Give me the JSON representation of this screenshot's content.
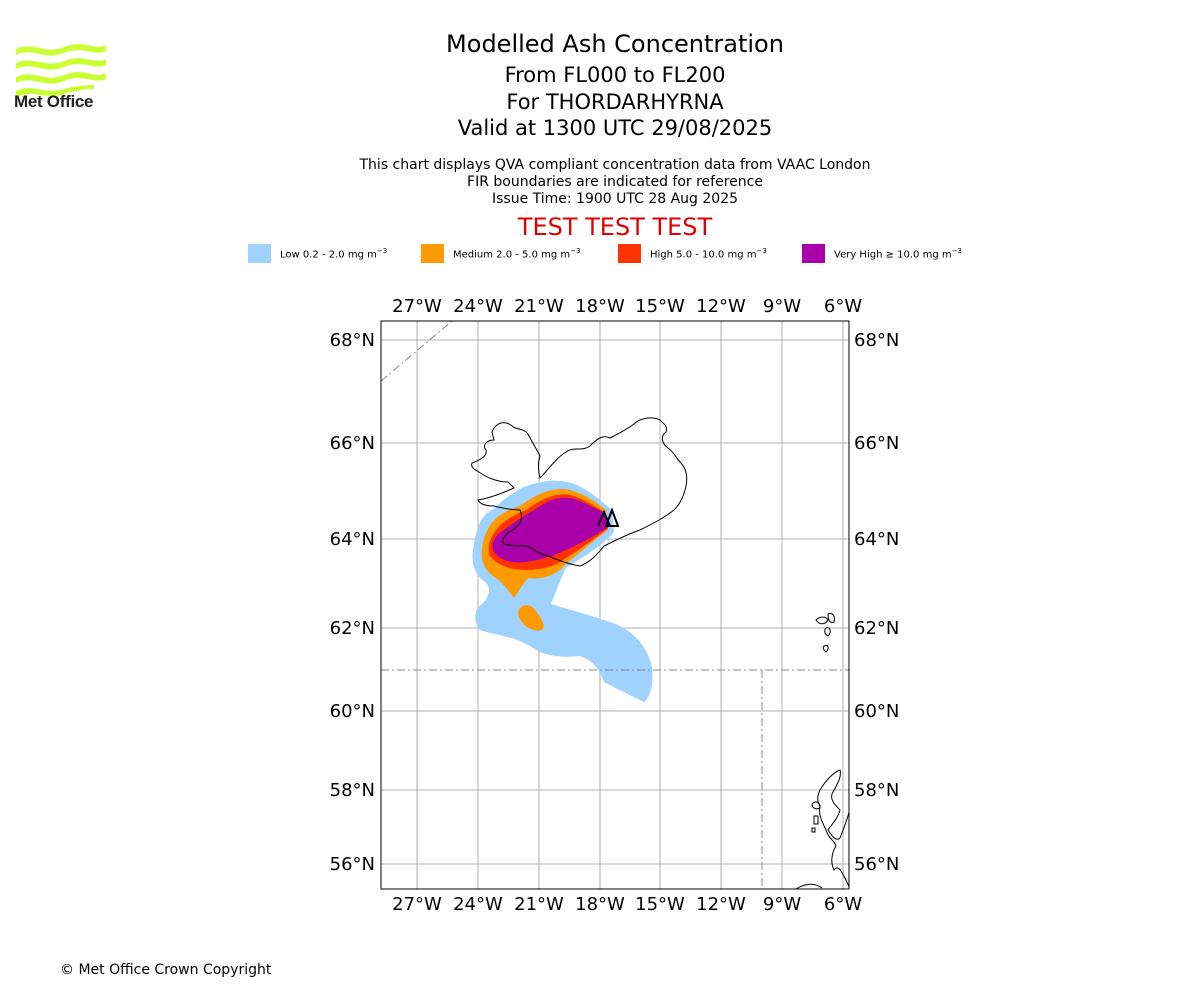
{
  "branding": {
    "logo_text": "Met Office",
    "logo_color": "#ccff33",
    "copyright": "© Met Office Crown Copyright"
  },
  "header": {
    "title": "Modelled Ash Concentration",
    "levels": "From FL000 to FL200",
    "volcano": "For THORDARHYRNA",
    "valid": "Valid at 1300 UTC 29/08/2025",
    "info_line1": "This chart displays QVA compliant concentration data from VAAC London",
    "info_line2": "FIR boundaries are indicated for reference",
    "info_line3": "Issue Time: 1900 UTC 28 Aug 2025",
    "test_banner": "TEST TEST TEST",
    "test_color": "#e00000"
  },
  "legend": [
    {
      "label_main": "Low 0.2 - 2.0 mg m",
      "label_sup": "−3",
      "color": "#a0d2ff"
    },
    {
      "label_main": "Medium 2.0 - 5.0 mg m",
      "label_sup": "−3",
      "color": "#ff9900"
    },
    {
      "label_main": "High 5.0 - 10.0 mg m",
      "label_sup": "−3",
      "color": "#ff3300"
    },
    {
      "label_main": "Very High  ≥  10.0 mg m",
      "label_sup": "−3",
      "color": "#aa00aa"
    }
  ],
  "map": {
    "lon_ticks": [
      "27°W",
      "24°W",
      "21°W",
      "18°W",
      "15°W",
      "12°W",
      "9°W",
      "6°W"
    ],
    "lat_ticks": [
      "68°N",
      "66°N",
      "64°N",
      "62°N",
      "60°N",
      "58°N",
      "56°N"
    ],
    "gridlines": true,
    "fir_boundary_style": "dash-dot grey"
  }
}
